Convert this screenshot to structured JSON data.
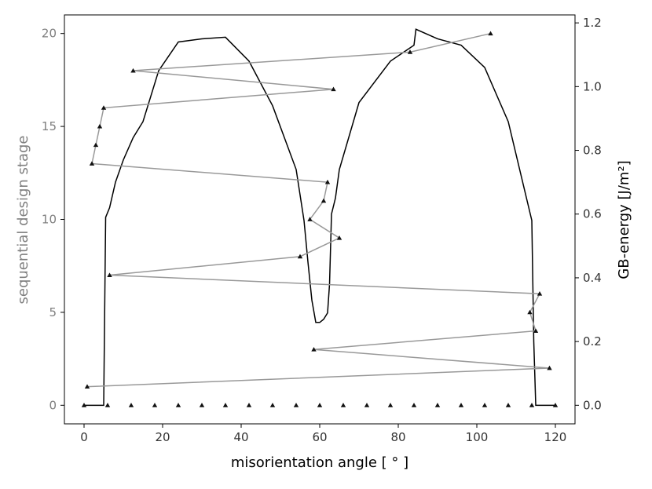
{
  "chart_data": {
    "type": "line",
    "xlabel": "misorientation angle [ ° ]",
    "ylabel_left": "sequential design stage",
    "ylabel_right": "GB-energy [J/m²]",
    "xlim": [
      -5,
      125
    ],
    "ylim_left": [
      -1,
      21
    ],
    "ylim_right": [
      -0.0583,
      1.225
    ],
    "x_ticks": [
      0,
      20,
      40,
      60,
      80,
      100,
      120
    ],
    "y_left_ticks": [
      0,
      5,
      10,
      15,
      20
    ],
    "y_right_ticks": [
      0.0,
      0.2,
      0.4,
      0.6,
      0.8,
      1.0,
      1.2
    ],
    "x_tick_labels": [
      "0",
      "20",
      "40",
      "60",
      "80",
      "100",
      "120"
    ],
    "y_left_tick_labels": [
      "0",
      "5",
      "10",
      "15",
      "20"
    ],
    "y_right_tick_labels": [
      "0.0",
      "0.2",
      "0.4",
      "0.6",
      "0.8",
      "1.0",
      "1.2"
    ],
    "grid": false,
    "colors": {
      "energy": "#000000",
      "design": "#999999",
      "marker": "#111111"
    },
    "series": [
      {
        "axis": "right",
        "style": "line",
        "x": [
          0,
          5,
          5.5,
          6.5,
          8,
          10,
          12.5,
          15,
          19,
          24,
          30,
          36,
          42,
          48,
          54,
          56,
          57,
          58,
          59,
          60,
          61,
          62,
          62.5,
          63,
          64,
          65,
          70,
          78,
          84,
          84.5,
          90,
          96,
          102,
          108,
          114,
          114.5,
          115,
          120
        ],
        "y": [
          0.0,
          0.0,
          0.59,
          0.62,
          0.7,
          0.77,
          0.84,
          0.89,
          1.05,
          1.14,
          1.15,
          1.155,
          1.08,
          0.94,
          0.74,
          0.58,
          0.45,
          0.33,
          0.26,
          0.26,
          0.27,
          0.29,
          0.38,
          0.6,
          0.65,
          0.74,
          0.95,
          1.08,
          1.13,
          1.18,
          1.15,
          1.13,
          1.06,
          0.89,
          0.58,
          0.2,
          0.0,
          0.0
        ]
      },
      {
        "axis": "left",
        "style": "line-markers",
        "stage": [
          1,
          2,
          3,
          4,
          5,
          6,
          7,
          8,
          9,
          10,
          11,
          12,
          13,
          14,
          15,
          16,
          17,
          18,
          19,
          20
        ],
        "x": [
          0.8,
          118.5,
          58.5,
          115,
          113.5,
          116,
          6.5,
          55,
          65,
          57.5,
          61,
          62,
          2,
          3,
          4,
          5,
          63.5,
          12.5,
          83,
          103.5
        ]
      },
      {
        "axis": "left",
        "style": "markers",
        "stage_value": 0,
        "x": [
          0,
          6,
          12,
          18,
          24,
          30,
          36,
          42,
          48,
          54,
          60,
          66,
          72,
          78,
          84,
          90,
          96,
          102,
          108,
          114,
          120
        ]
      }
    ]
  }
}
